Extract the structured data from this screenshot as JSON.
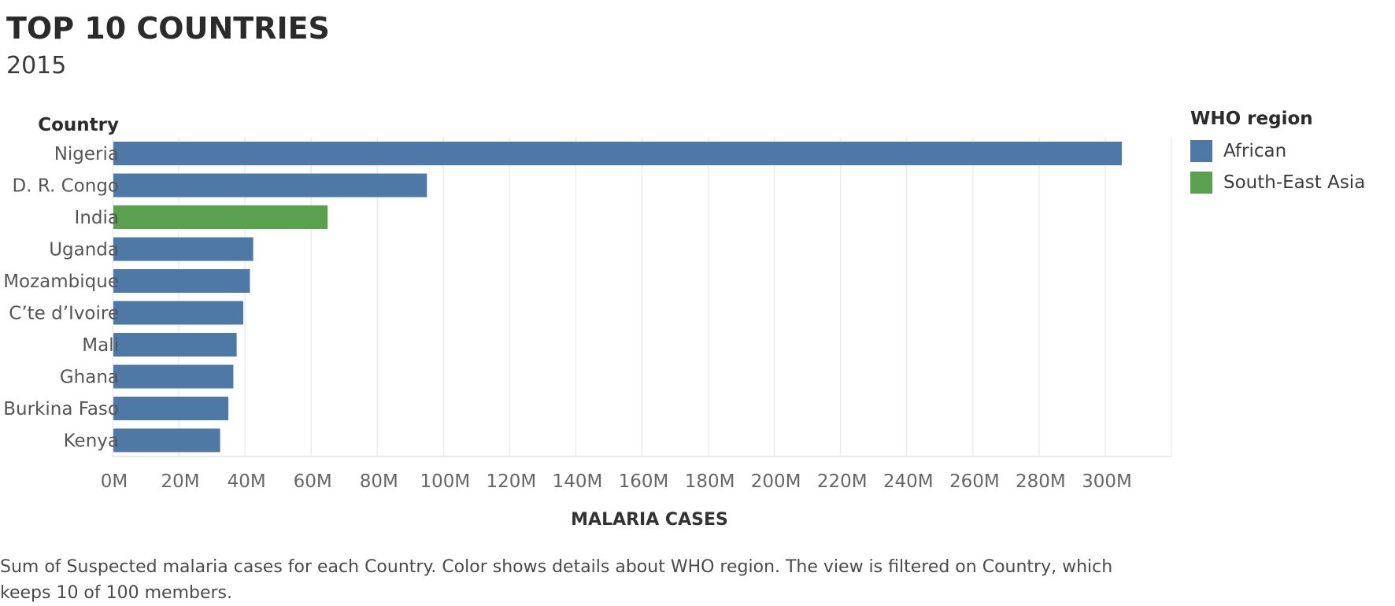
{
  "title": "TOP 10 COUNTRIES",
  "subtitle": "2015",
  "caption": "Sum of Suspected malaria cases for each Country.  Color shows details about WHO region. The view is filtered on Country, which keeps 10 of 100 members.",
  "legend": {
    "title": "WHO region",
    "items": [
      {
        "label": "African",
        "color": "#4e79a7"
      },
      {
        "label": "South-East Asia",
        "color": "#59a14f"
      }
    ]
  },
  "chart_data": {
    "type": "bar",
    "orientation": "horizontal",
    "row_header": "Country",
    "categories": [
      "Nigeria",
      "D. R. Congo",
      "India",
      "Uganda",
      "Mozambique",
      "C’te d’Ivoire",
      "Mali",
      "Ghana",
      "Burkina Faso",
      "Kenya"
    ],
    "values": [
      305000000,
      95000000,
      65000000,
      42500000,
      41500000,
      39500000,
      37500000,
      36500000,
      35000000,
      32500000
    ],
    "regions": [
      "African",
      "African",
      "South-East Asia",
      "African",
      "African",
      "African",
      "African",
      "African",
      "African",
      "African"
    ],
    "xlabel": "MALARIA CASES",
    "xlim": [
      0,
      320000000
    ],
    "xticks": [
      {
        "value": 0,
        "label": "0M"
      },
      {
        "value": 20000000,
        "label": "20M"
      },
      {
        "value": 40000000,
        "label": "40M"
      },
      {
        "value": 60000000,
        "label": "60M"
      },
      {
        "value": 80000000,
        "label": "80M"
      },
      {
        "value": 100000000,
        "label": "100M"
      },
      {
        "value": 120000000,
        "label": "120M"
      },
      {
        "value": 140000000,
        "label": "140M"
      },
      {
        "value": 160000000,
        "label": "160M"
      },
      {
        "value": 180000000,
        "label": "180M"
      },
      {
        "value": 200000000,
        "label": "200M"
      },
      {
        "value": 220000000,
        "label": "220M"
      },
      {
        "value": 240000000,
        "label": "240M"
      },
      {
        "value": 260000000,
        "label": "260M"
      },
      {
        "value": 280000000,
        "label": "280M"
      },
      {
        "value": 300000000,
        "label": "300M"
      }
    ],
    "grid": true,
    "legend_position": "right"
  }
}
